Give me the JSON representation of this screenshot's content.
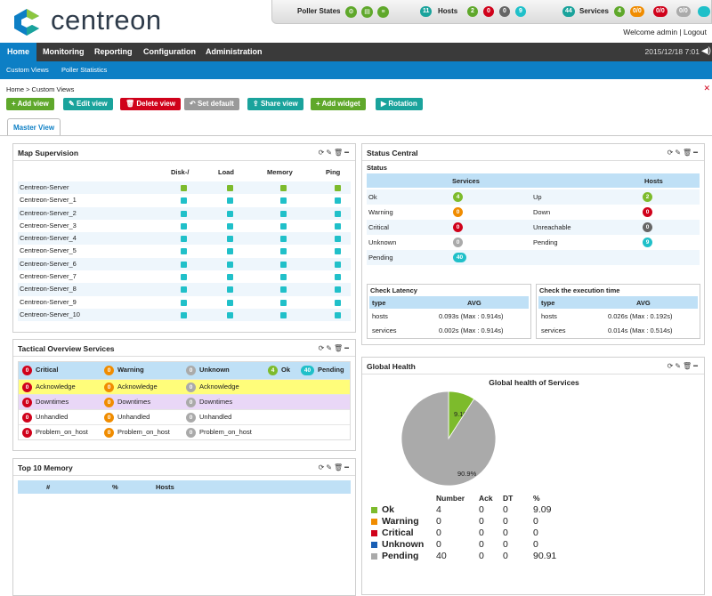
{
  "header": {
    "logo_text": "centreon",
    "poller_states_label": "Poller States",
    "hosts_label": "Hosts",
    "hosts_total": "11",
    "hosts_counts": [
      "2",
      "0",
      "0",
      "9"
    ],
    "services_label": "Services",
    "services_total": "44",
    "services_counts": [
      "4",
      "0/0",
      "0/0",
      "0/0"
    ],
    "welcome": "Welcome admin | Logout",
    "colors": {
      "green": "#5fa82b",
      "red": "#d0021b",
      "orange": "#f08c00",
      "cyan": "#20c0c9",
      "teal": "#1aa39c"
    }
  },
  "menu": {
    "items": [
      "Home",
      "Monitoring",
      "Reporting",
      "Configuration",
      "Administration"
    ],
    "datetime": "2015/12/18 7:01",
    "sub_items": [
      "Custom Views",
      "Poller Statistics"
    ]
  },
  "breadcrumb": "Home  >  Custom Views",
  "toolbar": {
    "add_view": "+ Add view",
    "edit_view": "Edit view",
    "delete_view": "Delete view",
    "set_default": "Set default",
    "share_view": "Share view",
    "add_widget": "+ Add widget",
    "rotation": "Rotation"
  },
  "tab": "Master View",
  "map_supervision": {
    "title": "Map Supervision",
    "columns": [
      "Disk-/",
      "Load",
      "Memory",
      "Ping"
    ],
    "rows": [
      {
        "name": "Centreon-Server",
        "status": "green"
      },
      {
        "name": "Centreon-Server_1",
        "status": "cyan"
      },
      {
        "name": "Centreon-Server_2",
        "status": "cyan"
      },
      {
        "name": "Centreon-Server_3",
        "status": "cyan"
      },
      {
        "name": "Centreon-Server_4",
        "status": "cyan"
      },
      {
        "name": "Centreon-Server_5",
        "status": "cyan"
      },
      {
        "name": "Centreon-Server_6",
        "status": "cyan"
      },
      {
        "name": "Centreon-Server_7",
        "status": "cyan"
      },
      {
        "name": "Centreon-Server_8",
        "status": "cyan"
      },
      {
        "name": "Centreon-Server_9",
        "status": "cyan"
      },
      {
        "name": "Centreon-Server_10",
        "status": "cyan"
      }
    ]
  },
  "tactical": {
    "title": "Tactical Overview Services",
    "header": [
      {
        "count": "0",
        "label": "Critical",
        "color": "red"
      },
      {
        "count": "0",
        "label": "Warning",
        "color": "orange"
      },
      {
        "count": "0",
        "label": "Unknown",
        "color": "grey"
      },
      {
        "count": "4",
        "label": "Ok",
        "color": "green"
      },
      {
        "count": "40",
        "label": "Pending",
        "color": "cyan"
      }
    ],
    "rows": [
      {
        "label": "Acknowledge",
        "bg": "#fffd7a"
      },
      {
        "label": "Downtimes",
        "bg": "#e9d7f7"
      },
      {
        "label": "Unhandled",
        "bg": "#fff"
      },
      {
        "label": "Problem_on_host",
        "bg": "#fff"
      }
    ],
    "row_counts": [
      "0",
      "0",
      "0"
    ]
  },
  "top10": {
    "title": "Top 10 Memory",
    "columns": [
      "#",
      "%",
      "Hosts"
    ]
  },
  "status_central": {
    "title": "Status Central",
    "status_label": "Status",
    "services_header": "Services",
    "hosts_header": "Hosts",
    "services": [
      {
        "label": "Ok",
        "count": "4",
        "color": "green"
      },
      {
        "label": "Warning",
        "count": "0",
        "color": "orange"
      },
      {
        "label": "Critical",
        "count": "0",
        "color": "red"
      },
      {
        "label": "Unknown",
        "count": "0",
        "color": "grey"
      },
      {
        "label": "Pending",
        "count": "40",
        "color": "cyan"
      }
    ],
    "hosts": [
      {
        "label": "Up",
        "count": "2",
        "color": "green"
      },
      {
        "label": "Down",
        "count": "0",
        "color": "red"
      },
      {
        "label": "Unreachable",
        "count": "0",
        "color": "darkgrey"
      },
      {
        "label": "Pending",
        "count": "9",
        "color": "cyan"
      }
    ],
    "latency": {
      "title": "Check Latency",
      "col_type": "type",
      "col_avg": "AVG",
      "rows": [
        {
          "type": "hosts",
          "avg": "0.093s (Max : 0.914s)"
        },
        {
          "type": "services",
          "avg": "0.002s (Max : 0.914s)"
        }
      ]
    },
    "exec_time": {
      "title": "Check the execution time",
      "col_type": "type",
      "col_avg": "AVG",
      "rows": [
        {
          "type": "hosts",
          "avg": "0.026s (Max : 0.192s)"
        },
        {
          "type": "services",
          "avg": "0.014s (Max : 0.514s)"
        }
      ]
    }
  },
  "global_health": {
    "title": "Global Health",
    "legend_headers": [
      "Number",
      "Ack",
      "DT",
      "%"
    ],
    "legend": [
      {
        "label": "Ok",
        "number": "4",
        "ack": "0",
        "dt": "0",
        "pct": "9.09",
        "color": "#7dbb2c"
      },
      {
        "label": "Warning",
        "number": "0",
        "ack": "0",
        "dt": "0",
        "pct": "0",
        "color": "#f08c00"
      },
      {
        "label": "Critical",
        "number": "0",
        "ack": "0",
        "dt": "0",
        "pct": "0",
        "color": "#d0021b"
      },
      {
        "label": "Unknown",
        "number": "0",
        "ack": "0",
        "dt": "0",
        "pct": "0",
        "color": "#1a5fb4"
      },
      {
        "label": "Pending",
        "number": "40",
        "ack": "0",
        "dt": "0",
        "pct": "90.91",
        "color": "#aaaaaa"
      }
    ]
  },
  "chart_data": {
    "type": "pie",
    "title": "Global health of Services",
    "categories": [
      "Ok",
      "Pending"
    ],
    "values": [
      9.1,
      90.9
    ],
    "labels": [
      "9.1%",
      "90.9%"
    ],
    "colors": [
      "#7dbb2c",
      "#aaaaaa"
    ]
  }
}
